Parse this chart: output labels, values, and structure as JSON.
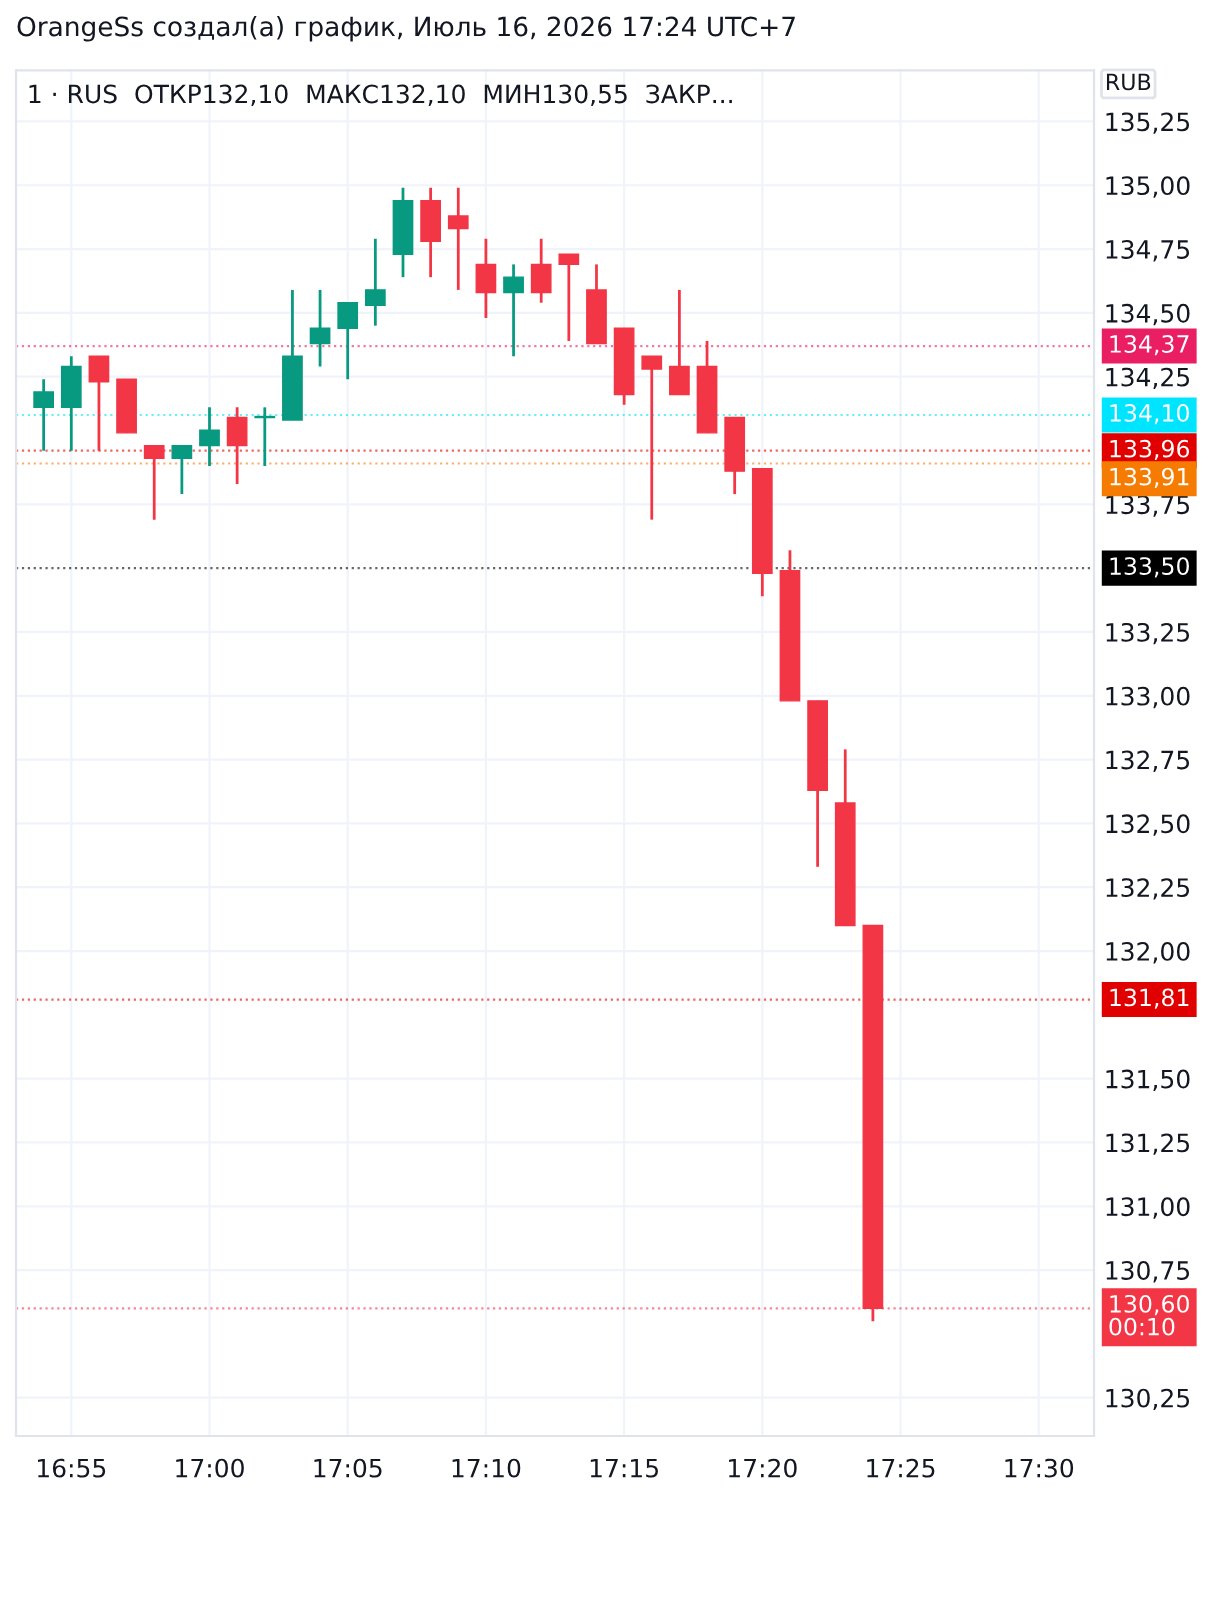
{
  "chart_data": {
    "type": "candlestick",
    "title": "OrangeSs создал(а) график, Июль 16, 2026 17:24 UTC+7",
    "subtitle": "1 · RUS  ОТКР132,10  МАКС132,10  МИН130,55  ЗАКР...",
    "ylabel": "RUB",
    "x": [
      "2026-07-16T16:54",
      "2026-07-16T16:55",
      "2026-07-16T16:56",
      "2026-07-16T16:57",
      "2026-07-16T16:58",
      "2026-07-16T16:59",
      "2026-07-16T17:00",
      "2026-07-16T17:01",
      "2026-07-16T17:02",
      "2026-07-16T17:03",
      "2026-07-16T17:04",
      "2026-07-16T17:05",
      "2026-07-16T17:06",
      "2026-07-16T17:07",
      "2026-07-16T17:08",
      "2026-07-16T17:09",
      "2026-07-16T17:10",
      "2026-07-16T17:11",
      "2026-07-16T17:12",
      "2026-07-16T17:13",
      "2026-07-16T17:14",
      "2026-07-16T17:15",
      "2026-07-16T17:16",
      "2026-07-16T17:17",
      "2026-07-16T17:18",
      "2026-07-16T17:19",
      "2026-07-16T17:20",
      "2026-07-16T17:21",
      "2026-07-16T17:22",
      "2026-07-16T17:23",
      "2026-07-16T17:24"
    ],
    "ohlc": [
      [
        134.13,
        134.24,
        133.96,
        134.19
      ],
      [
        134.13,
        134.33,
        133.96,
        134.29
      ],
      [
        134.33,
        134.33,
        133.96,
        134.23
      ],
      [
        134.24,
        134.24,
        134.03,
        134.03
      ],
      [
        133.98,
        133.98,
        133.69,
        133.93
      ],
      [
        133.93,
        133.98,
        133.79,
        133.98
      ],
      [
        133.98,
        134.13,
        133.9,
        134.04
      ],
      [
        134.09,
        134.13,
        133.83,
        133.98
      ],
      [
        134.09,
        134.13,
        133.9,
        134.09
      ],
      [
        134.08,
        134.59,
        134.08,
        134.33
      ],
      [
        134.38,
        134.59,
        134.29,
        134.44
      ],
      [
        134.44,
        134.54,
        134.24,
        134.54
      ],
      [
        134.53,
        134.79,
        134.45,
        134.59
      ],
      [
        134.73,
        134.99,
        134.64,
        134.94
      ],
      [
        134.94,
        134.99,
        134.64,
        134.78
      ],
      [
        134.88,
        134.99,
        134.59,
        134.83
      ],
      [
        134.69,
        134.79,
        134.48,
        134.58
      ],
      [
        134.58,
        134.69,
        134.33,
        134.64
      ],
      [
        134.69,
        134.79,
        134.54,
        134.58
      ],
      [
        134.73,
        134.73,
        134.39,
        134.69
      ],
      [
        134.59,
        134.69,
        134.38,
        134.38
      ],
      [
        134.44,
        134.44,
        134.14,
        134.18
      ],
      [
        134.33,
        134.33,
        133.69,
        134.28
      ],
      [
        134.29,
        134.59,
        134.18,
        134.18
      ],
      [
        134.29,
        134.39,
        134.03,
        134.03
      ],
      [
        134.09,
        134.09,
        133.79,
        133.88
      ],
      [
        133.89,
        133.89,
        133.39,
        133.48
      ],
      [
        133.49,
        133.57,
        132.98,
        132.98
      ],
      [
        132.98,
        132.98,
        132.33,
        132.63
      ],
      [
        132.58,
        132.79,
        132.1,
        132.1
      ],
      [
        132.1,
        132.1,
        130.55,
        130.6
      ]
    ],
    "colors": [
      "#089981",
      "#089981",
      "#f23645",
      "#f23645",
      "#f23645",
      "#089981",
      "#089981",
      "#f23645",
      "#089981",
      "#089981",
      "#089981",
      "#089981",
      "#089981",
      "#089981",
      "#f23645",
      "#f23645",
      "#f23645",
      "#089981",
      "#f23645",
      "#f23645",
      "#f23645",
      "#f23645",
      "#f23645",
      "#f23645",
      "#f23645",
      "#f23645",
      "#f23645",
      "#f23645",
      "#f23645",
      "#f23645",
      "#f23645"
    ],
    "xlim": [
      "2026-07-16T16:53",
      "2026-07-16T17:32"
    ],
    "xticks": [
      {
        "value": "2026-07-16T16:55",
        "label": "16:55"
      },
      {
        "value": "2026-07-16T17:00",
        "label": "17:00"
      },
      {
        "value": "2026-07-16T17:05",
        "label": "17:05"
      },
      {
        "value": "2026-07-16T17:10",
        "label": "17:10"
      },
      {
        "value": "2026-07-16T17:15",
        "label": "17:15"
      },
      {
        "value": "2026-07-16T17:20",
        "label": "17:20"
      },
      {
        "value": "2026-07-16T17:25",
        "label": "17:25"
      },
      {
        "value": "2026-07-16T17:30",
        "label": "17:30"
      }
    ],
    "ylim": [
      130.1,
      135.45
    ],
    "yticks": [
      {
        "value": 135.25,
        "label": "135,25"
      },
      {
        "value": 135.0,
        "label": "135,00"
      },
      {
        "value": 134.75,
        "label": "134,75"
      },
      {
        "value": 134.5,
        "label": "134,50"
      },
      {
        "value": 134.25,
        "label": "134,25"
      },
      {
        "value": 133.75,
        "label": "133,75"
      },
      {
        "value": 133.25,
        "label": "133,25"
      },
      {
        "value": 133.0,
        "label": "133,00"
      },
      {
        "value": 132.75,
        "label": "132,75"
      },
      {
        "value": 132.5,
        "label": "132,50"
      },
      {
        "value": 132.25,
        "label": "132,25"
      },
      {
        "value": 132.0,
        "label": "132,00"
      },
      {
        "value": 131.5,
        "label": "131,50"
      },
      {
        "value": 131.25,
        "label": "131,25"
      },
      {
        "value": 131.0,
        "label": "131,00"
      },
      {
        "value": 130.75,
        "label": "130,75"
      },
      {
        "value": 130.25,
        "label": "130,25"
      }
    ],
    "ref_lines": [
      {
        "axis": "y",
        "value": 134.37,
        "label": "134,37",
        "color": "#e91e63",
        "line_style": "dotted"
      },
      {
        "axis": "y",
        "value": 134.1,
        "label": "134,10",
        "color": "#00e5ff",
        "line_style": "dotted"
      },
      {
        "axis": "y",
        "value": 133.96,
        "label": "133,96",
        "color": "#e00000",
        "line_style": "dotted"
      },
      {
        "axis": "y",
        "value": 133.91,
        "label": "133,91",
        "color": "#f57c00",
        "line_style": "dotted"
      },
      {
        "axis": "y",
        "value": 133.5,
        "label": "133,50",
        "color": "#000000",
        "line_style": "dotted"
      },
      {
        "axis": "y",
        "value": 131.81,
        "label": "131,81",
        "color": "#e00000",
        "line_style": "dotted"
      },
      {
        "axis": "y",
        "value": 130.6,
        "label": "130,60\n00:10",
        "color": "#f23645",
        "line_style": "dotted"
      }
    ],
    "grid": true
  }
}
